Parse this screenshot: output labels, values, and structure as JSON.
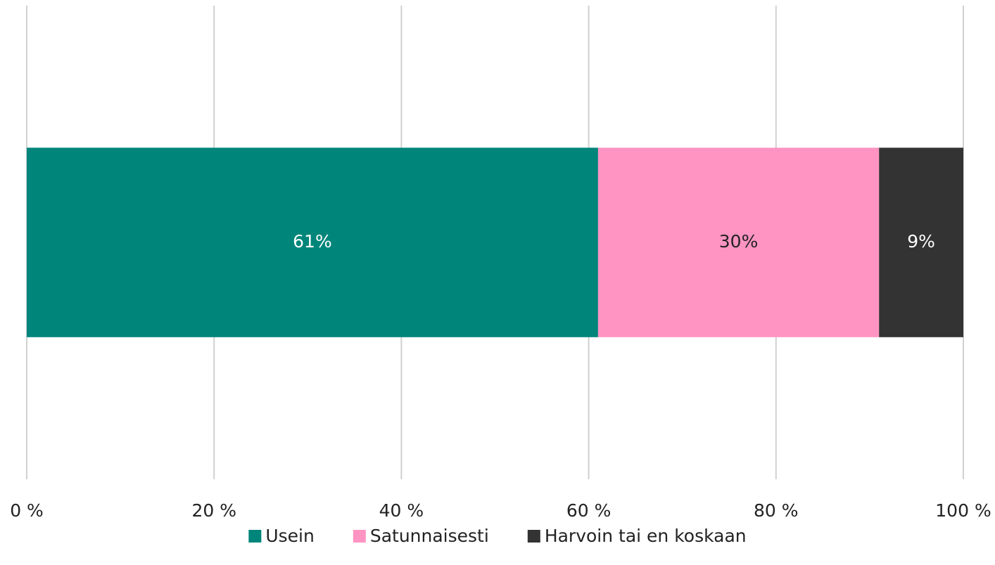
{
  "chart_data": {
    "type": "stacked-bar-horizontal",
    "categories": [
      null
    ],
    "series": [
      {
        "name": "Usein",
        "color": "#00857a",
        "values": [
          61
        ],
        "value_labels": [
          "61%"
        ]
      },
      {
        "name": "Satunnaisesti",
        "color": "#ff94c2",
        "values": [
          30
        ],
        "value_labels": [
          "30%"
        ]
      },
      {
        "name": "Harvoin tai en koskaan",
        "color": "#333333",
        "values": [
          9
        ],
        "value_labels": [
          "9%"
        ]
      }
    ],
    "xlim": [
      0,
      100
    ],
    "xticks": [
      {
        "value": 0,
        "label": "0 %"
      },
      {
        "value": 20,
        "label": "20 %"
      },
      {
        "value": 40,
        "label": "40 %"
      },
      {
        "value": 60,
        "label": "60 %"
      },
      {
        "value": 80,
        "label": "80 %"
      },
      {
        "value": 100,
        "label": "100 %"
      }
    ],
    "grid": true,
    "legend": "bottom"
  }
}
